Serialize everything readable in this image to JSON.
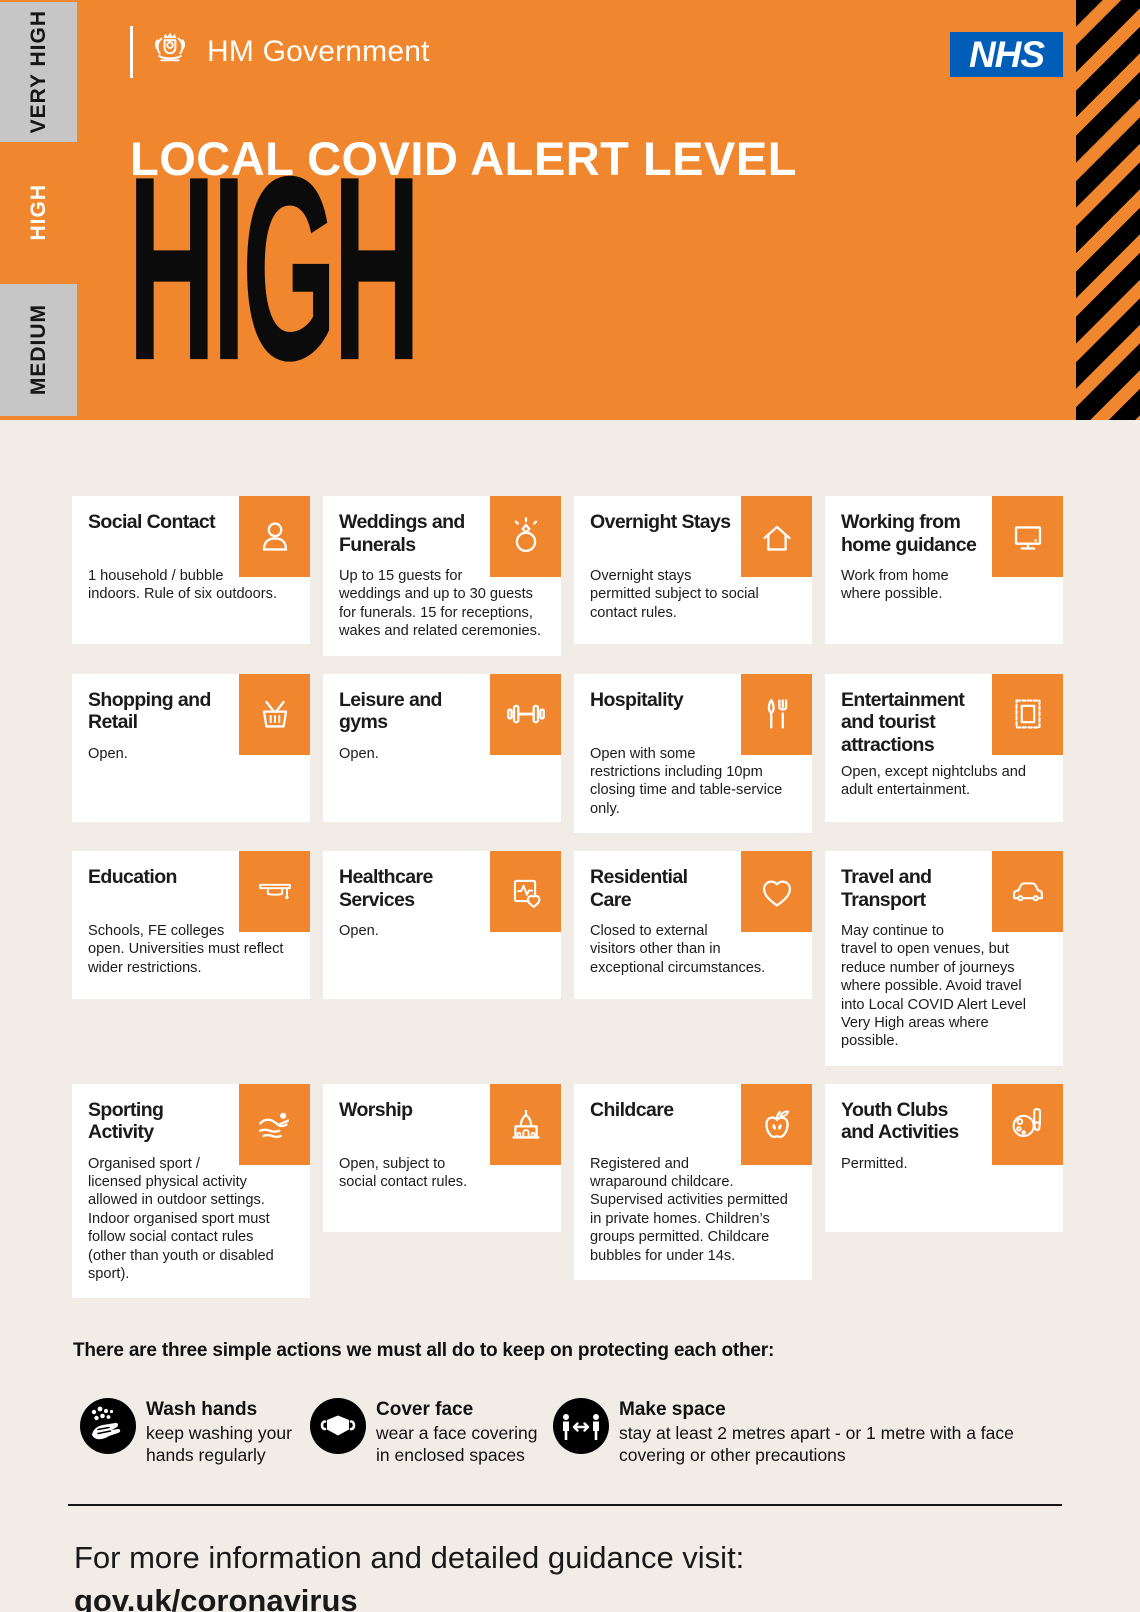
{
  "colors": {
    "orange": "#F0862D",
    "nhs_blue": "#005EB8",
    "tab_gray": "#C6C6C6",
    "background": "#F1ECE6",
    "stripe_black": "#000000"
  },
  "sidebar": {
    "tabs": [
      {
        "label": "VERY HIGH",
        "active": false
      },
      {
        "label": "HIGH",
        "active": true
      },
      {
        "label": "MEDIUM",
        "active": false
      }
    ]
  },
  "header": {
    "gov_label": "HM Government",
    "nhs_label": "NHS",
    "title": "LOCAL COVID ALERT LEVEL",
    "level": "HIGH"
  },
  "cards": [
    {
      "title": "Social Contact",
      "icon": "person",
      "body": "1 household / bubble indoors. Rule of six outdoors."
    },
    {
      "title": "Weddings and Funerals",
      "icon": "wedding-ring",
      "body": "Up to 15 guests for weddings and up to 30 guests for funerals. 15 for receptions, wakes and related ceremonies."
    },
    {
      "title": "Overnight Stays",
      "icon": "house",
      "body": "Overnight stays permitted subject to social contact rules."
    },
    {
      "title": "Working from home guidance",
      "icon": "monitor",
      "body": "Work from home where possible."
    },
    {
      "title": "Shopping and Retail",
      "icon": "shopping-basket",
      "body": "Open."
    },
    {
      "title": "Leisure and gyms",
      "icon": "dumbbell",
      "body": "Open."
    },
    {
      "title": "Hospitality",
      "icon": "knife-fork",
      "body": "Open with some restrictions including 10pm closing time and table-service only."
    },
    {
      "title": "Entertainment and tourist attractions",
      "icon": "stamp",
      "body": "Open, except nightclubs and adult entertainment."
    },
    {
      "title": "Education",
      "icon": "mortarboard",
      "body": "Schools, FE colleges open. Universities must reflect wider restrictions."
    },
    {
      "title": "Healthcare Services",
      "icon": "health-screen",
      "body": "Open."
    },
    {
      "title": "Residential Care",
      "icon": "heart",
      "body": "Closed to external visitors other than in exceptional circumstances."
    },
    {
      "title": "Travel and Transport",
      "icon": "car",
      "body": "May continue to travel to open venues, but reduce number of journeys where possible. Avoid travel into Local COVID Alert Level Very High areas where possible."
    },
    {
      "title": "Sporting Activity",
      "icon": "swimmer",
      "body": "Organised sport / licensed physical activity allowed in outdoor settings. Indoor organised sport must follow social contact rules (other than youth or disabled sport)."
    },
    {
      "title": "Worship",
      "icon": "place-of-worship",
      "body": "Open, subject to social contact rules."
    },
    {
      "title": "Childcare",
      "icon": "apple",
      "body": "Registered and wraparound childcare. Supervised activities permitted in private homes. Children’s groups permitted. Childcare bubbles for under 14s."
    },
    {
      "title": "Youth Clubs and Activities",
      "icon": "paint-palette",
      "body": "Permitted."
    }
  ],
  "actions": {
    "heading": "There are three simple actions we must all do to keep on protecting each other:",
    "items": [
      {
        "icon": "wash-hands",
        "title": "Wash hands",
        "body": "keep washing your hands regularly"
      },
      {
        "icon": "face-covering",
        "title": "Cover face",
        "body": "wear a face covering in enclosed spaces"
      },
      {
        "icon": "social-distance",
        "title": "Make space",
        "body": "stay at least 2 metres apart - or 1 metre with a face covering or other precautions"
      }
    ]
  },
  "footer": {
    "line1": "For more information and detailed guidance visit:",
    "line2": "gov.uk/coronavirus"
  }
}
